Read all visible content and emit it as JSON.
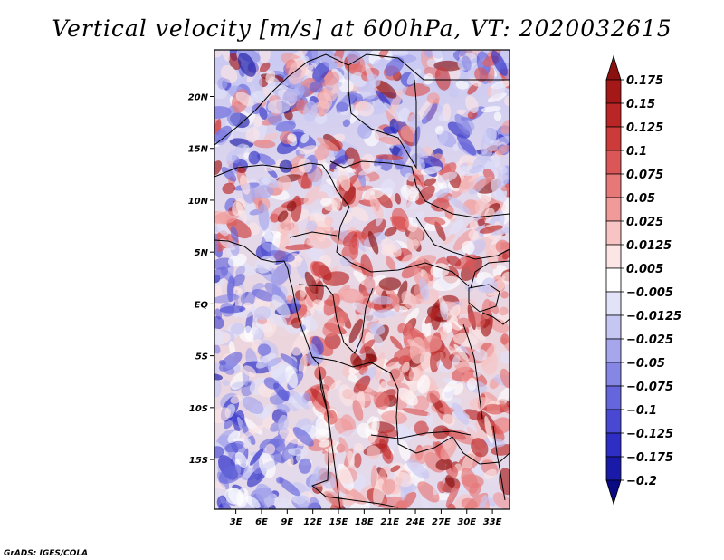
{
  "chart_data": {
    "type": "heatmap",
    "title": "Vertical velocity [m/s] at 600hPa, VT: 2020032615",
    "variable": "Vertical velocity",
    "units": "m/s",
    "level": "600hPa",
    "valid_time": "2020032615",
    "x_ticks": [
      {
        "value": 3,
        "label": "3E"
      },
      {
        "value": 6,
        "label": "6E"
      },
      {
        "value": 9,
        "label": "9E"
      },
      {
        "value": 12,
        "label": "12E"
      },
      {
        "value": 15,
        "label": "15E"
      },
      {
        "value": 18,
        "label": "18E"
      },
      {
        "value": 21,
        "label": "21E"
      },
      {
        "value": 24,
        "label": "24E"
      },
      {
        "value": 27,
        "label": "27E"
      },
      {
        "value": 30,
        "label": "30E"
      },
      {
        "value": 33,
        "label": "33E"
      }
    ],
    "y_ticks": [
      {
        "value": 20,
        "label": "20N"
      },
      {
        "value": 15,
        "label": "15N"
      },
      {
        "value": 10,
        "label": "10N"
      },
      {
        "value": 5,
        "label": "5N"
      },
      {
        "value": 0,
        "label": "EQ"
      },
      {
        "value": -5,
        "label": "5S"
      },
      {
        "value": -10,
        "label": "10S"
      },
      {
        "value": -15,
        "label": "15S"
      }
    ],
    "xlim": [
      0.5,
      35
    ],
    "ylim": [
      -19.8,
      24.5
    ],
    "colorbar": {
      "levels": [
        "0.175",
        "0.15",
        "0.125",
        "0.1",
        "0.075",
        "0.05",
        "0.025",
        "0.0125",
        "0.005",
        "−0.005",
        "−0.0125",
        "−0.025",
        "−0.05",
        "−0.075",
        "−0.1",
        "−0.125",
        "−0.175",
        "−0.2"
      ],
      "colors": [
        "#8b1010",
        "#a51818",
        "#ba2525",
        "#cc3a3a",
        "#db5656",
        "#e67878",
        "#f09a9a",
        "#f7c3c3",
        "#fce5e5",
        "#ffffff",
        "#e2e2f9",
        "#c6c6f2",
        "#a6a6ec",
        "#8686e4",
        "#6666dc",
        "#4848d2",
        "#2e2ec4",
        "#1a1aa8",
        "#0a0a85"
      ]
    }
  },
  "footer": {
    "credit": "GrADS: IGES/COLA"
  }
}
